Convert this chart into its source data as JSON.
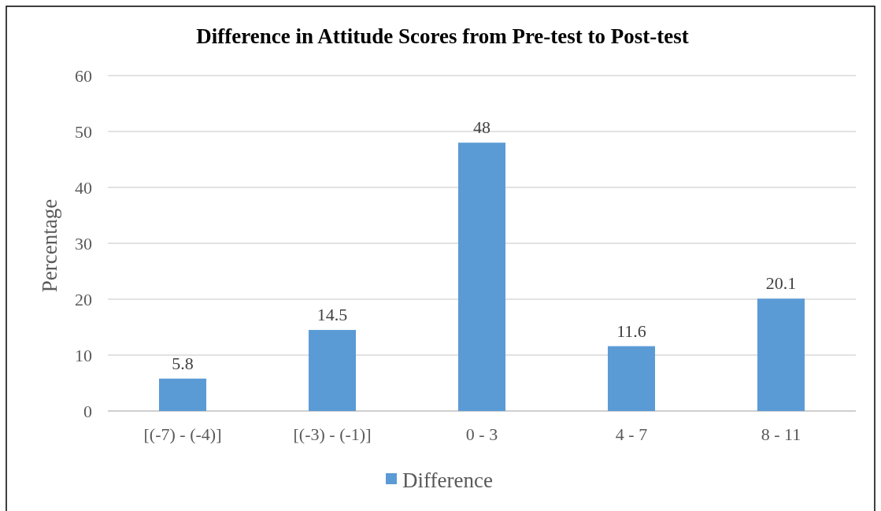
{
  "chart_data": {
    "type": "bar",
    "title": "Difference in Attitude Scores from Pre-test to Post-test",
    "ylabel": "Percentage",
    "categories": [
      "[(-7) - (-4)]",
      "[(-3) - (-1)]",
      "0 - 3",
      "4 - 7",
      "8 - 11"
    ],
    "series": [
      {
        "name": "Difference",
        "color": "#5b9bd5",
        "values": [
          5.8,
          14.5,
          48,
          11.6,
          20.1
        ]
      }
    ],
    "ylim": [
      0,
      60
    ],
    "yticks": [
      0,
      10,
      20,
      30,
      40,
      50,
      60
    ],
    "grid": "y",
    "legend": "bottom",
    "data_labels": true
  }
}
